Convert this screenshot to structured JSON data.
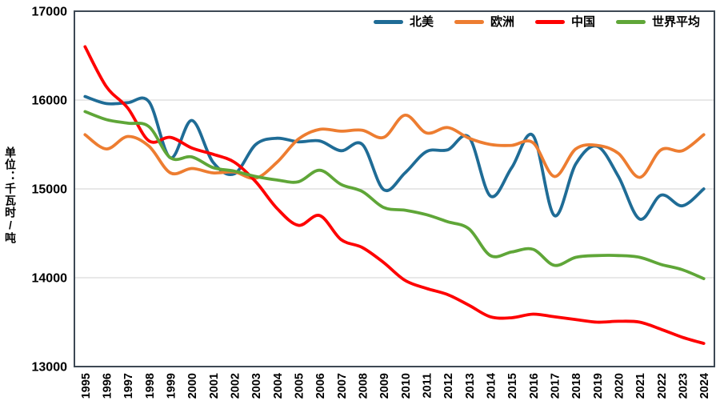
{
  "chart_data": {
    "type": "line",
    "title": "",
    "smooth": true,
    "grid": true,
    "categories": [
      "1995",
      "1996",
      "1997",
      "1998",
      "1999",
      "2000",
      "2001",
      "2002",
      "2003",
      "2004",
      "2005",
      "2006",
      "2007",
      "2008",
      "2009",
      "2010",
      "2011",
      "2012",
      "2013",
      "2014",
      "2015",
      "2016",
      "2017",
      "2018",
      "2019",
      "2020",
      "2021",
      "2022",
      "2023",
      "2024"
    ],
    "series": [
      {
        "key": "north-america",
        "name": "北美",
        "color": "#1f6c96",
        "values": [
          16040,
          15960,
          15970,
          15980,
          15350,
          15770,
          15300,
          15170,
          15500,
          15570,
          15530,
          15540,
          15430,
          15500,
          14990,
          15180,
          15420,
          15440,
          15580,
          14920,
          15240,
          15600,
          14700,
          15280,
          15480,
          15140,
          14660,
          14930,
          14810,
          15000
        ]
      },
      {
        "key": "europe",
        "name": "欧洲",
        "color": "#ed7d31",
        "values": [
          15610,
          15450,
          15590,
          15480,
          15180,
          15230,
          15180,
          15190,
          15120,
          15300,
          15560,
          15670,
          15650,
          15660,
          15580,
          15830,
          15630,
          15690,
          15570,
          15500,
          15490,
          15520,
          15140,
          15450,
          15490,
          15400,
          15130,
          15440,
          15430,
          15610
        ]
      },
      {
        "key": "china",
        "name": "中国",
        "color": "#fe0000",
        "values": [
          16600,
          16150,
          15910,
          15540,
          15580,
          15460,
          15390,
          15300,
          15080,
          14780,
          14590,
          14700,
          14430,
          14340,
          14170,
          13970,
          13880,
          13810,
          13690,
          13560,
          13550,
          13590,
          13560,
          13530,
          13500,
          13510,
          13500,
          13420,
          13330,
          13260
        ]
      },
      {
        "key": "world-average",
        "name": "世界平均",
        "color": "#5fa638",
        "values": [
          15870,
          15780,
          15740,
          15700,
          15350,
          15360,
          15240,
          15200,
          15140,
          15100,
          15080,
          15210,
          15050,
          14970,
          14790,
          14760,
          14710,
          14630,
          14550,
          14250,
          14290,
          14320,
          14140,
          14230,
          14250,
          14250,
          14230,
          14150,
          14090,
          13990
        ]
      }
    ],
    "y_axis": {
      "label": "单位：千瓦时/吨",
      "min": 13000,
      "max": 17000,
      "ticks": [
        17000,
        16000,
        15000,
        14000,
        13000
      ]
    },
    "x_axis": {
      "label": ""
    },
    "legend": {
      "position": "top-right"
    },
    "colors": {
      "grid": "#d9d9d9",
      "border": "#3d4854",
      "text": "#000000"
    }
  }
}
